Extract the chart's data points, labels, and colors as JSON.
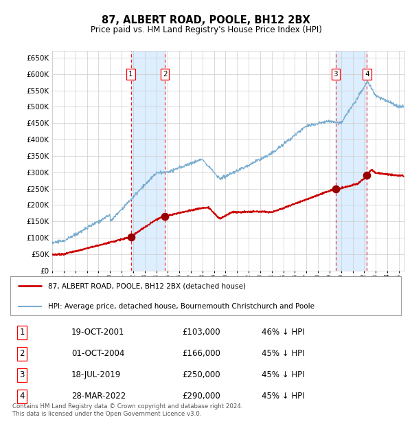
{
  "title": "87, ALBERT ROAD, POOLE, BH12 2BX",
  "subtitle": "Price paid vs. HM Land Registry's House Price Index (HPI)",
  "ylim": [
    0,
    670000
  ],
  "yticks": [
    0,
    50000,
    100000,
    150000,
    200000,
    250000,
    300000,
    350000,
    400000,
    450000,
    500000,
    550000,
    600000,
    650000
  ],
  "xlim_start": 1995.0,
  "xlim_end": 2025.5,
  "background_color": "#ffffff",
  "grid_color": "#cccccc",
  "sale_color": "#cc0000",
  "hpi_color": "#7aadcf",
  "transaction_shade_color": "#ddeeff",
  "transactions": [
    {
      "num": 1,
      "date_label": "19-OCT-2001",
      "price": 103000,
      "pct": "46%",
      "year": 2001.8
    },
    {
      "num": 2,
      "date_label": "01-OCT-2004",
      "price": 166000,
      "pct": "45%",
      "year": 2004.75
    },
    {
      "num": 3,
      "date_label": "18-JUL-2019",
      "price": 250000,
      "pct": "45%",
      "year": 2019.54
    },
    {
      "num": 4,
      "date_label": "28-MAR-2022",
      "price": 290000,
      "pct": "45%",
      "year": 2022.24
    }
  ],
  "legend_label_red": "87, ALBERT ROAD, POOLE, BH12 2BX (detached house)",
  "legend_label_blue": "HPI: Average price, detached house, Bournemouth Christchurch and Poole",
  "footer": "Contains HM Land Registry data © Crown copyright and database right 2024.\nThis data is licensed under the Open Government Licence v3.0."
}
